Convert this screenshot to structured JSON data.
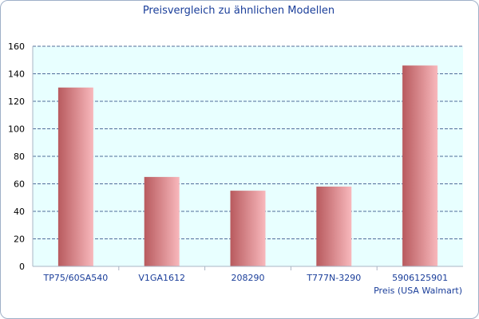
{
  "chart_data": {
    "type": "bar",
    "title": "Preisvergleich zu ähnlichen Modellen",
    "xlabel": "",
    "ylabel": "",
    "categories": [
      "TP75/60SA540",
      "V1GA1612",
      "208290",
      "T777N-3290",
      "5906125901"
    ],
    "series": [
      {
        "name": "Preis (USA Walmart)",
        "values": [
          130,
          65,
          55,
          58,
          146
        ]
      }
    ],
    "ylim": [
      0,
      160
    ],
    "yticks": [
      0,
      20,
      40,
      60,
      80,
      100,
      120,
      140,
      160
    ],
    "grid": true,
    "legend_position": "bottom-right"
  },
  "colors": {
    "title": "#1a3e9a",
    "axis_text": "#1a3e9a",
    "tick_text": "#000000",
    "plot_bg": "#e8ffff",
    "grid": "#1d3d7a",
    "bar_dark": "#b85a5e",
    "bar_light": "#f8b8bc"
  }
}
